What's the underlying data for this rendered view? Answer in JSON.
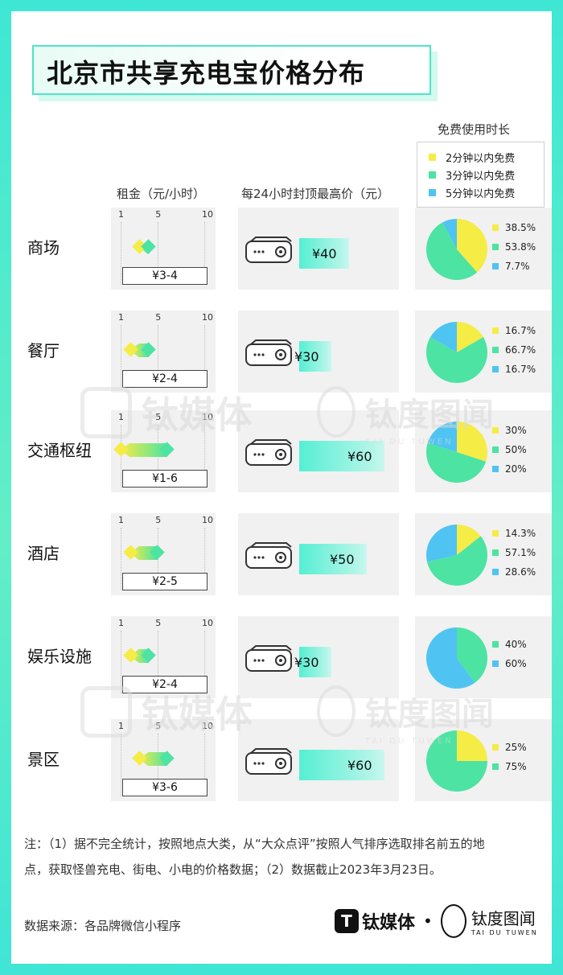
{
  "title": "北京市共享充电宝价格分布",
  "headers": {
    "rent": "租金（元/小时）",
    "cap": "每24小时封顶最高价（元）",
    "free": "免费使用时长"
  },
  "legend": [
    {
      "label": "2分钟以内免费",
      "color": "#f5ec45"
    },
    {
      "label": "3分钟以内免费",
      "color": "#4de3a3"
    },
    {
      "label": "5分钟以内免费",
      "color": "#4fc4f2"
    }
  ],
  "scale_labels": [
    "1",
    "5",
    "10"
  ],
  "chart_data": {
    "type": "table",
    "rows": [
      {
        "category": "商场",
        "rent_min": 3,
        "rent_max": 4,
        "rent_label": "¥3-4",
        "cap": 40,
        "cap_label": "¥40",
        "free": [
          {
            "label": "38.5%",
            "value": 38.5,
            "color": "#f5ec45"
          },
          {
            "label": "53.8%",
            "value": 53.8,
            "color": "#4de3a3"
          },
          {
            "label": "7.7%",
            "value": 7.7,
            "color": "#4fc4f2"
          }
        ]
      },
      {
        "category": "餐厅",
        "rent_min": 2,
        "rent_max": 4,
        "rent_label": "¥2-4",
        "cap": 30,
        "cap_label": "¥30",
        "free": [
          {
            "label": "16.7%",
            "value": 16.7,
            "color": "#f5ec45"
          },
          {
            "label": "66.7%",
            "value": 66.7,
            "color": "#4de3a3"
          },
          {
            "label": "16.7%",
            "value": 16.7,
            "color": "#4fc4f2"
          }
        ]
      },
      {
        "category": "交通枢纽",
        "rent_min": 1,
        "rent_max": 6,
        "rent_label": "¥1-6",
        "cap": 60,
        "cap_label": "¥60",
        "free": [
          {
            "label": "30%",
            "value": 30,
            "color": "#f5ec45"
          },
          {
            "label": "50%",
            "value": 50,
            "color": "#4de3a3"
          },
          {
            "label": "20%",
            "value": 20,
            "color": "#4fc4f2"
          }
        ]
      },
      {
        "category": "酒店",
        "rent_min": 2,
        "rent_max": 5,
        "rent_label": "¥2-5",
        "cap": 50,
        "cap_label": "¥50",
        "free": [
          {
            "label": "14.3%",
            "value": 14.3,
            "color": "#f5ec45"
          },
          {
            "label": "57.1%",
            "value": 57.1,
            "color": "#4de3a3"
          },
          {
            "label": "28.6%",
            "value": 28.6,
            "color": "#4fc4f2"
          }
        ]
      },
      {
        "category": "娱乐设施",
        "rent_min": 2,
        "rent_max": 4,
        "rent_label": "¥2-4",
        "cap": 30,
        "cap_label": "¥30",
        "free": [
          {
            "label": "40%",
            "value": 40,
            "color": "#4de3a3"
          },
          {
            "label": "60%",
            "value": 60,
            "color": "#4fc4f2"
          }
        ]
      },
      {
        "category": "景区",
        "rent_min": 3,
        "rent_max": 6,
        "rent_label": "¥3-6",
        "cap": 60,
        "cap_label": "¥60",
        "free": [
          {
            "label": "25%",
            "value": 25,
            "color": "#f5ec45"
          },
          {
            "label": "75%",
            "value": 75,
            "color": "#4de3a3"
          }
        ]
      }
    ]
  },
  "note_line1": "注：（1）据不完全统计，按照地点大类，从“大众点评”按照人气排序选取排名前五的地",
  "note_line2": "点，获取怪兽充电、街电、小电的价格数据；（2）数据截止2023年3月23日。",
  "source": "数据来源：各品牌微信小程序",
  "brand1": "钛媒体",
  "brand1_logo": "T",
  "brand2": "钛度图闻",
  "brand2_sub": "TAI DU TUWEN",
  "brand_dot": "•",
  "wm_brand1": "钛媒体",
  "wm_brand2": "钛度图闻",
  "wm_sub": "TAI DU TUWEN"
}
